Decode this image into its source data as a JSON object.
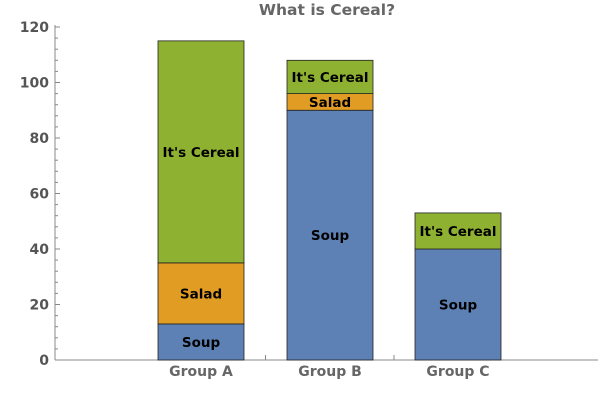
{
  "chart_data": {
    "type": "bar",
    "stacked": true,
    "title": "What is Cereal?",
    "xlabel": "",
    "ylabel": "",
    "categories": [
      "Group A",
      "Group B",
      "Group C"
    ],
    "ylim": [
      0,
      120
    ],
    "yticks": [
      0,
      20,
      40,
      60,
      80,
      100,
      120
    ],
    "series": [
      {
        "name": "Soup",
        "values": [
          13,
          90,
          40
        ],
        "color": "#5e81b5"
      },
      {
        "name": "Salad",
        "values": [
          22,
          6,
          0
        ],
        "color": "#e19c24"
      },
      {
        "name": "It's Cereal",
        "values": [
          80,
          12,
          13
        ],
        "color": "#8fb131"
      }
    ],
    "grid": false,
    "legend": "none",
    "axis_color": "#888888"
  }
}
